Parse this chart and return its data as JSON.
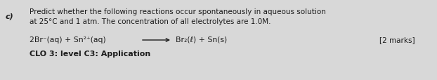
{
  "background_color": "#d8d8d8",
  "label_c": "c)",
  "line1": "Predict whether the following reactions occur spontaneously in aqueous solution",
  "line2": "at 25°C and 1 atm. The concentration of all electrolytes are 1.0M.",
  "reaction_left": "2Br⁻(aq) + Sn²⁺(aq)",
  "reaction_right": "Br₂(ℓ) + Sn(s)",
  "marks": "[2 marks]",
  "clo": "CLO 3: level C3: Application",
  "text_color": "#1c1c1c",
  "font_size_top": 7.5,
  "font_size_reaction": 7.8,
  "font_size_clo": 8.0,
  "font_size_label": 8.0
}
